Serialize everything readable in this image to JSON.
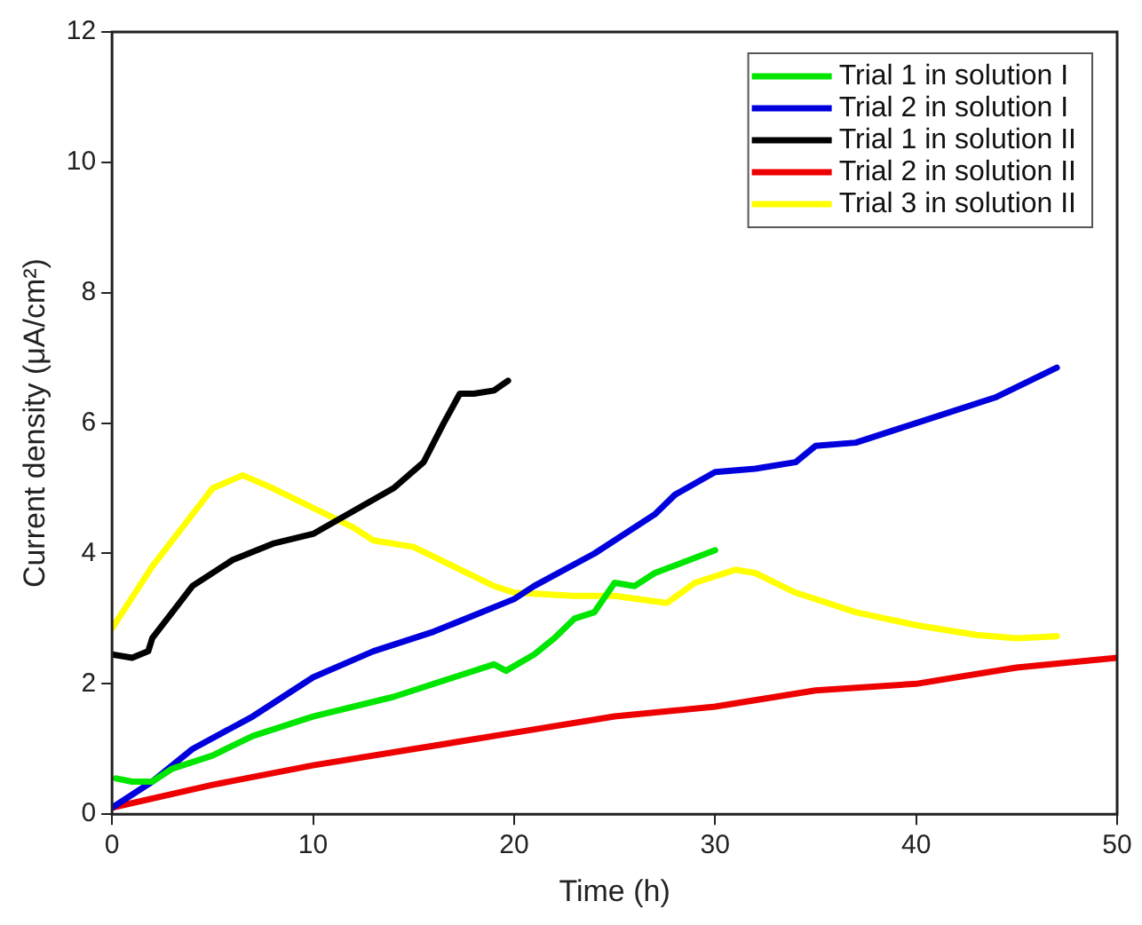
{
  "chart_data": {
    "type": "line",
    "xlabel": "Time (h)",
    "ylabel": "Current density (μA/cm²)",
    "xlim": [
      0,
      50
    ],
    "xticks": [
      0,
      10,
      20,
      30,
      40,
      50
    ],
    "ylim": [
      0,
      12
    ],
    "yticks": [
      0,
      2,
      4,
      6,
      8,
      10,
      12
    ],
    "grid": false,
    "legend": "top right",
    "marker": "none",
    "line_style": "solid",
    "series": [
      {
        "name": "Trial 1 in solution I",
        "color": "#00e600",
        "x": [
          0.2,
          1,
          2,
          3,
          5,
          7,
          10,
          14,
          17,
          19,
          19.6,
          21,
          22,
          23,
          24,
          25,
          26,
          27,
          30
        ],
        "values": [
          0.55,
          0.5,
          0.5,
          0.7,
          0.9,
          1.2,
          1.5,
          1.8,
          2.1,
          2.3,
          2.2,
          2.45,
          2.7,
          3.0,
          3.1,
          3.55,
          3.5,
          3.7,
          4.05
        ]
      },
      {
        "name": "Trial 2 in solution I",
        "color": "#0000dd",
        "x": [
          0,
          2,
          4,
          7,
          10,
          13,
          16,
          20,
          21,
          24,
          27,
          28,
          30,
          32,
          34,
          35,
          37,
          40,
          44,
          47
        ],
        "values": [
          0.1,
          0.5,
          1.0,
          1.5,
          2.1,
          2.5,
          2.8,
          3.3,
          3.5,
          4.0,
          4.6,
          4.9,
          5.25,
          5.3,
          5.4,
          5.65,
          5.7,
          6.0,
          6.4,
          6.85
        ]
      },
      {
        "name": "Trial 1 in solution II",
        "color": "#000000",
        "x": [
          0,
          1,
          1.8,
          2,
          3,
          4,
          6,
          8,
          10,
          12,
          14,
          15.5,
          16.5,
          17.3,
          18,
          19,
          19.7
        ],
        "values": [
          2.45,
          2.4,
          2.5,
          2.7,
          3.1,
          3.5,
          3.9,
          4.15,
          4.3,
          4.65,
          5.0,
          5.4,
          6.0,
          6.45,
          6.45,
          6.5,
          6.65
        ]
      },
      {
        "name": "Trial 2 in solution II",
        "color": "#ee0000",
        "x": [
          0,
          5,
          10,
          15,
          20,
          25,
          30,
          35,
          40,
          45,
          50
        ],
        "values": [
          0.1,
          0.45,
          0.75,
          1.0,
          1.25,
          1.5,
          1.65,
          1.9,
          2.0,
          2.25,
          2.4
        ]
      },
      {
        "name": "Trial 3 in solution II",
        "color": "#ffff00",
        "x": [
          0,
          2,
          4,
          5,
          6.5,
          8,
          10,
          12,
          13,
          15,
          17,
          19,
          20,
          23,
          25,
          27.6,
          29,
          31,
          32,
          34,
          37,
          40,
          43,
          45,
          47
        ],
        "values": [
          2.85,
          3.8,
          4.6,
          5.0,
          5.2,
          5.0,
          4.7,
          4.4,
          4.2,
          4.1,
          3.8,
          3.5,
          3.4,
          3.35,
          3.35,
          3.24,
          3.55,
          3.75,
          3.7,
          3.4,
          3.1,
          2.9,
          2.75,
          2.7,
          2.73
        ]
      }
    ]
  }
}
